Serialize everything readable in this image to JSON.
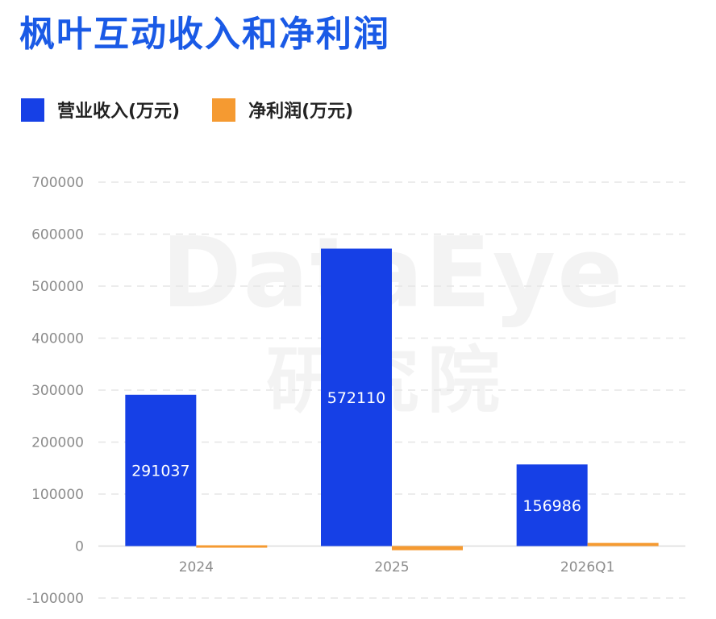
{
  "title": "枫叶互动收入和净利润",
  "watermark": {
    "text_en": "DataEye",
    "text_cn": "研究院"
  },
  "legend": [
    {
      "label": "营业收入(万元)",
      "color": "#1640e6"
    },
    {
      "label": "净利润(万元)",
      "color": "#f59a31"
    }
  ],
  "chart_data": {
    "type": "bar",
    "categories": [
      "2024",
      "2025",
      "2026Q1"
    ],
    "series": [
      {
        "name": "营业收入(万元)",
        "values": [
          291037,
          572110,
          156986
        ],
        "color": "#1640e6",
        "data_labels": [
          "291037",
          "572110",
          "156986"
        ]
      },
      {
        "name": "净利润(万元)",
        "values": [
          1500,
          -8000,
          6000
        ],
        "color": "#f59a31"
      }
    ],
    "y_ticks": [
      "700000",
      "600000",
      "500000",
      "400000",
      "300000",
      "200000",
      "100000",
      "0",
      "-100000"
    ],
    "ylim": [
      -100000,
      700000
    ],
    "grid": true,
    "legend_position": "top-left"
  }
}
